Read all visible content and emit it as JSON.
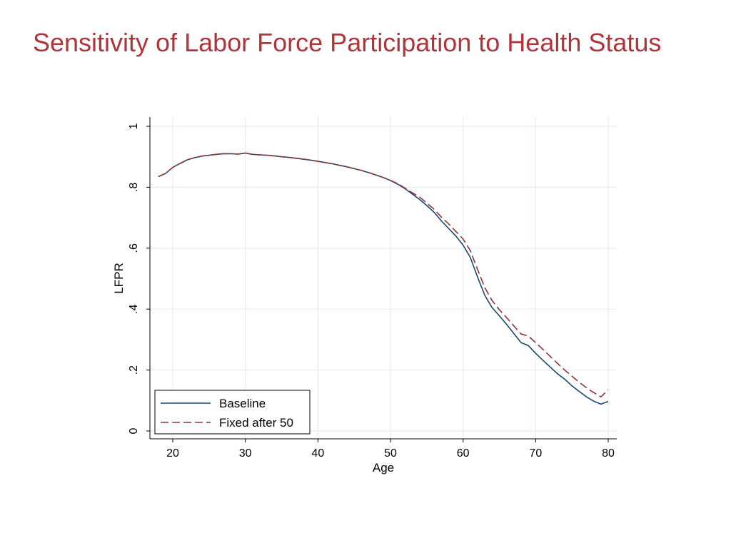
{
  "slide": {
    "title": "Sensitivity of Labor Force Participation to Health Status"
  },
  "chart_data": {
    "type": "line",
    "title": "",
    "xlabel": "Age",
    "ylabel": "LFPR",
    "xlim": [
      18,
      80
    ],
    "ylim": [
      0,
      1
    ],
    "xticks": [
      20,
      30,
      40,
      50,
      60,
      70,
      80
    ],
    "xtick_labels": [
      "20",
      "30",
      "40",
      "50",
      "60",
      "70",
      "80"
    ],
    "yticks": [
      0,
      0.2,
      0.4,
      0.6,
      0.8,
      1
    ],
    "ytick_labels": [
      "0",
      ".2",
      ".4",
      ".6",
      ".8",
      "1"
    ],
    "grid": true,
    "legend_position": "bottom-left",
    "x": [
      18,
      19,
      20,
      21,
      22,
      23,
      24,
      25,
      26,
      27,
      28,
      29,
      30,
      31,
      32,
      33,
      34,
      35,
      36,
      37,
      38,
      39,
      40,
      41,
      42,
      43,
      44,
      45,
      46,
      47,
      48,
      49,
      50,
      51,
      52,
      53,
      54,
      55,
      56,
      57,
      58,
      59,
      60,
      61,
      62,
      63,
      64,
      65,
      66,
      67,
      68,
      69,
      70,
      71,
      72,
      73,
      74,
      75,
      76,
      77,
      78,
      79,
      80
    ],
    "series": [
      {
        "name": "Baseline",
        "color": "#1a476f",
        "dash": "solid",
        "values": [
          0.835,
          0.845,
          0.865,
          0.878,
          0.89,
          0.897,
          0.902,
          0.905,
          0.908,
          0.91,
          0.91,
          0.909,
          0.912,
          0.908,
          0.906,
          0.905,
          0.903,
          0.9,
          0.898,
          0.895,
          0.892,
          0.889,
          0.885,
          0.881,
          0.877,
          0.872,
          0.867,
          0.861,
          0.855,
          0.848,
          0.84,
          0.832,
          0.822,
          0.81,
          0.795,
          0.778,
          0.76,
          0.74,
          0.718,
          0.69,
          0.665,
          0.64,
          0.61,
          0.57,
          0.505,
          0.445,
          0.405,
          0.378,
          0.35,
          0.32,
          0.29,
          0.28,
          0.255,
          0.232,
          0.21,
          0.188,
          0.17,
          0.148,
          0.13,
          0.112,
          0.098,
          0.088,
          0.097
        ]
      },
      {
        "name": "Fixed after 50",
        "color": "#90353b",
        "dash": "dashed",
        "values": [
          0.835,
          0.845,
          0.865,
          0.878,
          0.89,
          0.897,
          0.902,
          0.905,
          0.908,
          0.91,
          0.91,
          0.909,
          0.912,
          0.908,
          0.906,
          0.905,
          0.903,
          0.9,
          0.898,
          0.895,
          0.892,
          0.889,
          0.885,
          0.881,
          0.877,
          0.872,
          0.867,
          0.861,
          0.855,
          0.848,
          0.84,
          0.832,
          0.822,
          0.812,
          0.797,
          0.782,
          0.768,
          0.748,
          0.728,
          0.702,
          0.68,
          0.655,
          0.63,
          0.592,
          0.53,
          0.47,
          0.428,
          0.398,
          0.372,
          0.345,
          0.318,
          0.312,
          0.29,
          0.268,
          0.245,
          0.222,
          0.2,
          0.18,
          0.16,
          0.142,
          0.126,
          0.112,
          0.135
        ]
      }
    ]
  }
}
